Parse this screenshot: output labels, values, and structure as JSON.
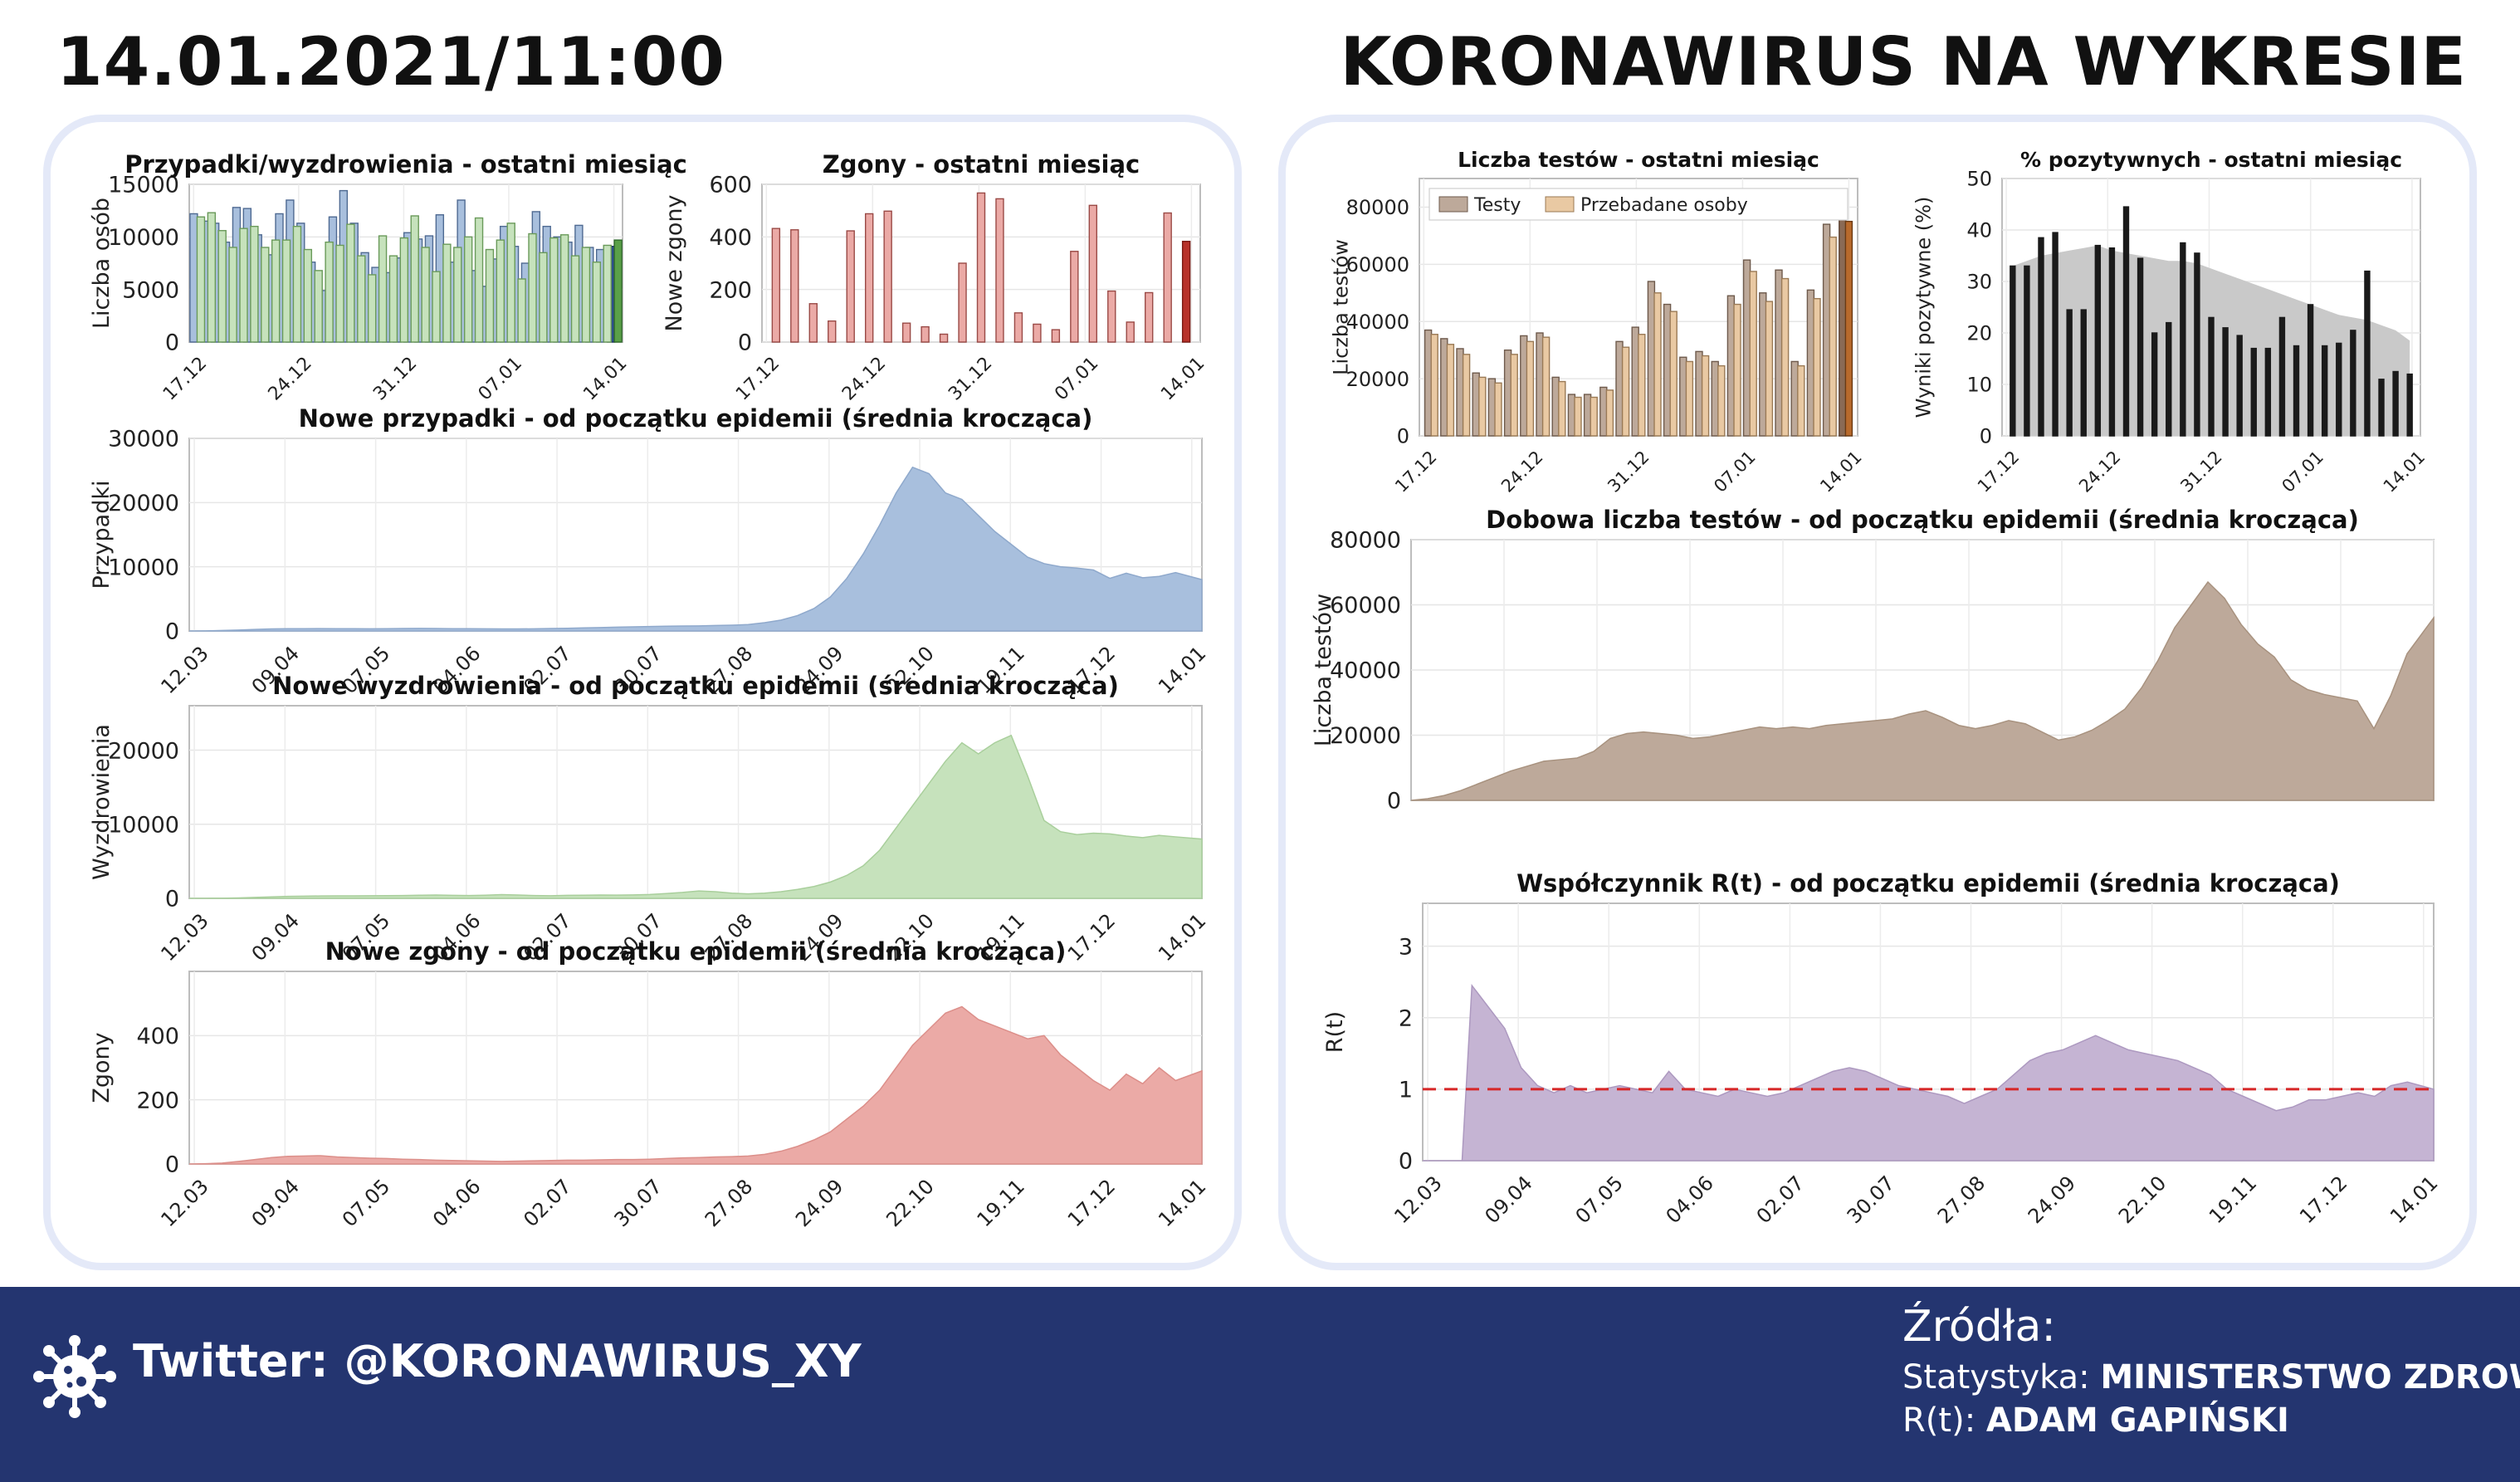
{
  "header": {
    "date": "14.01.2021/11:00",
    "title": "KORONAWIRUS NA WYKRESIE"
  },
  "footer": {
    "twitter": "Twitter: @KORONAWIRUS_XY",
    "sources_title": "Źródła:",
    "sources": [
      {
        "label": "Statystyka: ",
        "value": "MINISTERSTWO ZDROWIA"
      },
      {
        "label": "R(t): ",
        "value": "ADAM GAPIŃSKI"
      }
    ],
    "logo_icon": "virus-icon"
  },
  "colors": {
    "blue": "#a8bfdd",
    "blue_dark": "#2f4f8f",
    "green": "#c6e2bc",
    "green_dark": "#5aa048",
    "red": "#ebaaa6",
    "red_dark": "#b8322a",
    "tan": "#bda99a",
    "tan_light": "#e9c9a3",
    "tan_dark": "#b86a2c",
    "gray": "#c9c9c9",
    "purple": "#c5b4d3",
    "panel_border": "#e4e9f8",
    "footer": "#243570"
  },
  "chart_data": [
    {
      "id": "cases-month",
      "type": "bar",
      "title": "Przypadki/wyzdrowienia - ostatni miesiąc",
      "ylabel": "Liczba osób",
      "ylim": [
        0,
        15000
      ],
      "yticks": [
        0,
        5000,
        10000,
        15000
      ],
      "xticks": [
        "17.12",
        "24.12",
        "31.12",
        "07.01",
        "14.01"
      ],
      "series": [
        {
          "values": [
            12200,
            11500,
            11300,
            9500,
            12800,
            12700,
            10200,
            8300,
            12200,
            13500,
            11300,
            7600,
            4900,
            11900,
            14400,
            11300,
            8500,
            7100,
            6600,
            8000,
            10400,
            9800,
            10100,
            12100,
            7600,
            13500,
            6800,
            5300,
            7900,
            11000,
            9100,
            7500,
            12400,
            11000,
            10000,
            9500,
            11100,
            9000,
            8800,
            9100
          ]
        },
        {
          "values": [
            11900,
            12300,
            10600,
            9000,
            10800,
            11000,
            9000,
            9700,
            9700,
            11000,
            8800,
            6800,
            9500,
            9200,
            11200,
            8200,
            6400,
            10100,
            8200,
            9900,
            12000,
            9000,
            6700,
            9300,
            9000,
            10000,
            11800,
            8800,
            9700,
            11300,
            6000,
            10300,
            8500,
            9900,
            10200,
            8200,
            9000,
            7600,
            9200,
            9700
          ]
        }
      ]
    },
    {
      "id": "deaths-month",
      "type": "bar",
      "title": "Zgony - ostatni miesiąc",
      "ylabel": "Nowe zgony",
      "ylim": [
        0,
        600
      ],
      "yticks": [
        0,
        200,
        400,
        600
      ],
      "xticks": [
        "17.12",
        "24.12",
        "31.12",
        "07.01",
        "14.01"
      ],
      "series": [
        {
          "values": [
            432,
            427,
            146,
            80,
            423,
            488,
            498,
            72,
            58,
            30,
            300,
            567,
            545,
            111,
            68,
            47,
            345,
            520,
            194,
            76,
            188,
            491,
            383
          ]
        }
      ]
    },
    {
      "id": "new-cases",
      "type": "area",
      "title": "Nowe przypadki - od początku epidemii (średnia krocząca)",
      "ylabel": "Przypadki",
      "ylim": [
        0,
        30000
      ],
      "yticks": [
        0,
        10000,
        20000,
        30000
      ],
      "xticks": [
        "12.03",
        "09.04",
        "07.05",
        "04.06",
        "02.07",
        "30.07",
        "27.08",
        "24.09",
        "22.10",
        "19.11",
        "17.12",
        "14.01"
      ],
      "x": [
        0,
        5,
        10,
        15,
        20,
        25,
        30,
        35,
        40,
        45,
        50,
        55,
        60,
        65,
        70,
        75,
        80,
        85,
        90,
        95,
        100,
        105,
        110,
        115,
        120,
        125,
        130,
        135,
        140,
        145,
        150,
        155,
        160,
        165,
        170,
        175,
        180,
        185,
        190,
        195,
        200,
        205,
        210,
        215,
        220,
        225,
        230,
        235,
        240,
        245,
        250,
        255,
        260,
        265,
        270,
        275,
        280,
        285,
        290,
        295,
        300,
        308
      ],
      "values": [
        0,
        20,
        80,
        150,
        250,
        330,
        350,
        360,
        370,
        360,
        350,
        340,
        360,
        380,
        400,
        380,
        360,
        350,
        340,
        330,
        320,
        340,
        380,
        420,
        480,
        540,
        600,
        650,
        700,
        750,
        780,
        800,
        850,
        900,
        1000,
        1300,
        1700,
        2400,
        3500,
        5300,
        8200,
        12000,
        16500,
        21500,
        25500,
        24500,
        21500,
        20500,
        18000,
        15500,
        13500,
        11500,
        10500,
        10000,
        9800,
        9500,
        8200,
        9000,
        8300,
        8500,
        9100,
        8000
      ]
    },
    {
      "id": "new-recoveries",
      "type": "area",
      "title": "Nowe wyzdrowienia - od początku epidemii (średnia krocząca)",
      "ylabel": "Wyzdrowienia",
      "ylim": [
        0,
        26000
      ],
      "yticks": [
        0,
        10000,
        20000
      ],
      "xticks": [
        "12.03",
        "09.04",
        "07.05",
        "04.06",
        "02.07",
        "30.07",
        "27.08",
        "24.09",
        "22.10",
        "19.11",
        "17.12",
        "14.01"
      ],
      "x": [
        0,
        5,
        10,
        15,
        20,
        25,
        30,
        35,
        40,
        45,
        50,
        55,
        60,
        65,
        70,
        75,
        80,
        85,
        90,
        95,
        100,
        105,
        110,
        115,
        120,
        125,
        130,
        135,
        140,
        145,
        150,
        155,
        160,
        165,
        170,
        175,
        180,
        185,
        190,
        195,
        200,
        205,
        210,
        215,
        220,
        225,
        230,
        235,
        240,
        245,
        250,
        255,
        260,
        265,
        270,
        275,
        280,
        285,
        290,
        295,
        300,
        308
      ],
      "values": [
        0,
        5,
        20,
        60,
        120,
        200,
        260,
        300,
        320,
        330,
        340,
        350,
        360,
        380,
        420,
        450,
        400,
        380,
        420,
        500,
        450,
        380,
        350,
        400,
        420,
        450,
        430,
        460,
        520,
        650,
        800,
        1000,
        900,
        700,
        600,
        700,
        900,
        1200,
        1600,
        2200,
        3100,
        4400,
        6500,
        9500,
        12500,
        15500,
        18500,
        21000,
        19500,
        21000,
        22000,
        16500,
        10500,
        9000,
        8600,
        8800,
        8700,
        8400,
        8200,
        8500,
        8300,
        8000
      ]
    },
    {
      "id": "new-deaths",
      "type": "area",
      "title": "Nowe zgony - od początku epidemii (średnia krocząca)",
      "ylabel": "Zgony",
      "ylim": [
        0,
        600
      ],
      "yticks": [
        0,
        200,
        400
      ],
      "xticks": [
        "12.03",
        "09.04",
        "07.05",
        "04.06",
        "02.07",
        "30.07",
        "27.08",
        "24.09",
        "22.10",
        "19.11",
        "17.12",
        "14.01"
      ],
      "x": [
        0,
        5,
        10,
        15,
        20,
        25,
        30,
        35,
        40,
        45,
        50,
        55,
        60,
        65,
        70,
        75,
        80,
        85,
        90,
        95,
        100,
        105,
        110,
        115,
        120,
        125,
        130,
        135,
        140,
        145,
        150,
        155,
        160,
        165,
        170,
        175,
        180,
        185,
        190,
        195,
        200,
        205,
        210,
        215,
        220,
        225,
        230,
        235,
        240,
        245,
        250,
        255,
        260,
        265,
        270,
        275,
        280,
        285,
        290,
        295,
        300,
        308
      ],
      "values": [
        0,
        1,
        3,
        8,
        14,
        20,
        24,
        25,
        26,
        22,
        20,
        18,
        17,
        15,
        14,
        12,
        11,
        10,
        9,
        8,
        9,
        10,
        11,
        12,
        12,
        13,
        14,
        14,
        15,
        17,
        19,
        20,
        22,
        23,
        25,
        30,
        40,
        55,
        75,
        100,
        140,
        180,
        230,
        300,
        370,
        420,
        470,
        490,
        450,
        430,
        410,
        390,
        400,
        340,
        300,
        260,
        230,
        280,
        250,
        300,
        260,
        290
      ]
    },
    {
      "id": "tests-month",
      "type": "bar",
      "title": "Liczba testów - ostatni miesiąc",
      "ylabel": "Liczba testów",
      "ylim": [
        0,
        90000
      ],
      "yticks": [
        0,
        20000,
        40000,
        60000,
        80000
      ],
      "xticks": [
        "17.12",
        "24.12",
        "31.12",
        "07.01",
        "14.01"
      ],
      "legend": [
        "Testy",
        "Przebadane osoby"
      ],
      "series": [
        {
          "name": "Testy",
          "values": [
            37000,
            34000,
            30500,
            22000,
            20000,
            30000,
            35000,
            36000,
            20500,
            14500,
            14500,
            17000,
            33000,
            38000,
            54000,
            46000,
            27500,
            29500,
            26000,
            49000,
            61500,
            50000,
            58000,
            26000,
            51000,
            74000,
            80000
          ]
        },
        {
          "name": "Przebadane osoby",
          "values": [
            35500,
            32000,
            28500,
            20500,
            18500,
            28500,
            33000,
            34500,
            19000,
            13500,
            13500,
            16000,
            31000,
            35500,
            50000,
            43500,
            26000,
            28000,
            24500,
            46000,
            57500,
            47000,
            55000,
            24500,
            48000,
            69500,
            75000
          ]
        }
      ]
    },
    {
      "id": "positive-percent",
      "type": "bar",
      "title": "% pozytywnych - ostatni miesiąc",
      "ylabel": "Wyniki pozytywne (%)",
      "ylim": [
        0,
        50
      ],
      "yticks": [
        0,
        10,
        20,
        30,
        40,
        50
      ],
      "xticks": [
        "17.12",
        "24.12",
        "31.12",
        "07.01",
        "14.01"
      ],
      "series": [
        {
          "values": [
            33,
            33,
            38.5,
            39.5,
            24.5,
            24.5,
            37,
            36.5,
            44.5,
            34.5,
            20,
            22,
            37.5,
            35.5,
            23,
            21,
            19.5,
            17,
            17,
            23,
            17.5,
            25.5,
            17.5,
            18,
            20.5,
            32,
            11,
            12.5,
            12
          ]
        },
        {
          "name": "average",
          "values": [
            33,
            34,
            35,
            35.5,
            36,
            36.5,
            37,
            36,
            35.5,
            35,
            34.5,
            34,
            34,
            33.5,
            32.5,
            31.5,
            30.5,
            29.5,
            28.5,
            27.5,
            26.5,
            25.5,
            24.5,
            23.5,
            23,
            22.5,
            21.5,
            20.5,
            18.5
          ]
        }
      ]
    },
    {
      "id": "daily-tests",
      "type": "area",
      "title": "Dobowa liczba testów - od początku epidemii (średnia krocząca)",
      "ylabel": "Liczba testów",
      "ylim": [
        0,
        80000
      ],
      "yticks": [
        0,
        20000,
        40000,
        60000,
        80000
      ],
      "xticks": [],
      "x": [
        0,
        5,
        10,
        15,
        20,
        25,
        30,
        35,
        40,
        45,
        50,
        55,
        60,
        65,
        70,
        75,
        80,
        85,
        90,
        95,
        100,
        105,
        110,
        115,
        120,
        125,
        130,
        135,
        140,
        145,
        150,
        155,
        160,
        165,
        170,
        175,
        180,
        185,
        190,
        195,
        200,
        205,
        210,
        215,
        220,
        225,
        230,
        235,
        240,
        245,
        250,
        255,
        260,
        265,
        270,
        275,
        280,
        285,
        290,
        295,
        300,
        308
      ],
      "values": [
        0,
        500,
        1500,
        3000,
        5000,
        7000,
        9000,
        10500,
        12000,
        12500,
        13000,
        15000,
        19000,
        20500,
        21000,
        20500,
        20000,
        19000,
        19500,
        20500,
        21500,
        22500,
        22000,
        22500,
        22000,
        23000,
        23500,
        24000,
        24500,
        25000,
        26500,
        27500,
        25500,
        23000,
        22000,
        23000,
        24500,
        23500,
        21000,
        18500,
        19500,
        21500,
        24500,
        28000,
        34500,
        43000,
        53000,
        60000,
        67000,
        62000,
        54000,
        48000,
        44000,
        37000,
        34000,
        32500,
        31500,
        30500,
        22000,
        32000,
        45000,
        56000
      ]
    },
    {
      "id": "rt",
      "type": "area",
      "title": "Współczynnik R(t) - od początku epidemii (średnia krocząca)",
      "ylabel": "R(t)",
      "ylim": [
        0,
        3.6
      ],
      "yticks": [
        0,
        1,
        2,
        3
      ],
      "reference_line": 1,
      "xticks": [
        "12.03",
        "09.04",
        "07.05",
        "04.06",
        "02.07",
        "30.07",
        "27.08",
        "24.09",
        "22.10",
        "19.11",
        "17.12",
        "14.01"
      ],
      "x": [
        0,
        5,
        10,
        12,
        15,
        20,
        25,
        30,
        35,
        40,
        45,
        50,
        55,
        60,
        65,
        70,
        75,
        80,
        85,
        90,
        95,
        100,
        105,
        110,
        115,
        120,
        125,
        130,
        135,
        140,
        145,
        150,
        155,
        160,
        165,
        170,
        175,
        180,
        185,
        190,
        195,
        200,
        205,
        210,
        215,
        220,
        225,
        230,
        235,
        240,
        245,
        250,
        255,
        260,
        265,
        270,
        275,
        280,
        285,
        290,
        295,
        300,
        308
      ],
      "values": [
        0,
        0,
        0,
        0,
        2.45,
        2.15,
        1.85,
        1.3,
        1.05,
        0.95,
        1.05,
        0.95,
        1.0,
        1.05,
        1.0,
        0.95,
        1.25,
        1.0,
        0.95,
        0.9,
        1.0,
        0.95,
        0.9,
        0.95,
        1.05,
        1.15,
        1.25,
        1.3,
        1.25,
        1.15,
        1.05,
        1.0,
        0.95,
        0.9,
        0.8,
        0.9,
        1.0,
        1.2,
        1.4,
        1.5,
        1.55,
        1.65,
        1.75,
        1.65,
        1.55,
        1.5,
        1.45,
        1.4,
        1.3,
        1.2,
        1.0,
        0.9,
        0.8,
        0.7,
        0.75,
        0.85,
        0.85,
        0.9,
        0.95,
        0.9,
        1.05,
        1.1,
        1.0
      ]
    }
  ]
}
